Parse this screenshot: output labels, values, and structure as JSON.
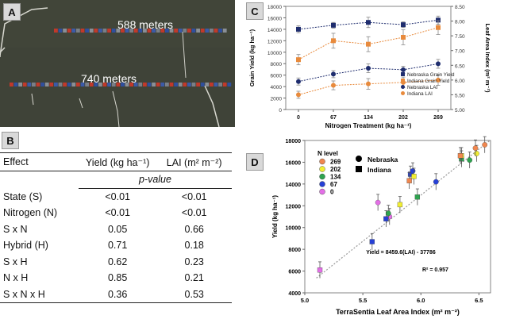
{
  "panels": {
    "a": {
      "label": "A",
      "strips": [
        {
          "distance": "588 meters"
        },
        {
          "distance": "740 meters"
        }
      ]
    },
    "b": {
      "label": "B"
    },
    "c": {
      "label": "C"
    },
    "d": {
      "label": "D"
    }
  },
  "effects_table": {
    "headers": [
      "Effect",
      "Yield (kg ha⁻¹)",
      "LAI (m² m⁻²)"
    ],
    "pvalue_label": "p-value",
    "rows": [
      [
        "State (S)",
        "<0.01",
        "<0.01"
      ],
      [
        "Nitrogen (N)",
        "<0.01",
        "<0.01"
      ],
      [
        "S x N",
        "0.05",
        "0.66"
      ],
      [
        "Hybrid (H)",
        "0.71",
        "0.18"
      ],
      [
        "S x H",
        "0.62",
        "0.23"
      ],
      [
        "N x H",
        "0.85",
        "0.21"
      ],
      [
        "S x N x H",
        "0.36",
        "0.53"
      ]
    ]
  },
  "chart_data": [
    {
      "panel": "C",
      "type": "scatter",
      "x": [
        0,
        67,
        134,
        202,
        269
      ],
      "xticklabels": [
        "0",
        "67",
        "134",
        "202",
        "269"
      ],
      "xlabel": "Nitrogen Treatment (kg ha⁻¹)",
      "ylabel": "Grain Yield (kg ha⁻¹)",
      "y2label": "Leaf Area Index (m² m⁻²)",
      "ylim": [
        0,
        18000
      ],
      "yticks": [
        0,
        2000,
        4000,
        6000,
        8000,
        10000,
        12000,
        14000,
        16000,
        18000
      ],
      "y2lim": [
        5.0,
        8.5
      ],
      "y2ticks": [
        "5.00",
        "5.50",
        "6.00",
        "6.50",
        "7.00",
        "7.50",
        "8.00",
        "8.50"
      ],
      "series": [
        {
          "name": "Nebraska Grain Yield",
          "axis": "left",
          "marker": "square",
          "color": "#1f2d6e",
          "values": [
            14000,
            14700,
            15200,
            14800,
            15600
          ],
          "errors": [
            600,
            500,
            900,
            500,
            700
          ]
        },
        {
          "name": "Indiana Grain Yield",
          "axis": "left",
          "marker": "square",
          "color": "#e88a3c",
          "values": [
            8700,
            12000,
            11400,
            12600,
            14300
          ],
          "errors": [
            900,
            1300,
            1300,
            1300,
            1200
          ]
        },
        {
          "name": "Nebraska LAI",
          "axis": "right",
          "marker": "circle",
          "color": "#1f2d6e",
          "values": [
            5.95,
            6.2,
            6.4,
            6.35,
            6.55
          ],
          "errors": [
            0.12,
            0.12,
            0.15,
            0.12,
            0.15
          ]
        },
        {
          "name": "Indiana LAI",
          "axis": "right",
          "marker": "circle",
          "color": "#e88a3c",
          "values": [
            5.5,
            5.82,
            5.87,
            5.92,
            6.0
          ],
          "errors": [
            0.12,
            0.15,
            0.18,
            0.18,
            0.18
          ]
        }
      ],
      "legend": "bottom-right"
    },
    {
      "panel": "D",
      "type": "scatter",
      "xlabel": "TerraSentia Leaf Area Index (m² m⁻²)",
      "ylabel": "Yield (kg ha⁻¹)",
      "xlim": [
        5.0,
        6.6
      ],
      "xticks": [
        "5.0",
        "5.5",
        "6.0",
        "6.5"
      ],
      "ylim": [
        4000,
        18000
      ],
      "yticks": [
        4000,
        6000,
        8000,
        10000,
        12000,
        14000,
        16000,
        18000
      ],
      "legend_title": "N level",
      "n_levels": [
        {
          "level": "269",
          "color": "#f0874f"
        },
        {
          "level": "202",
          "color": "#f2ef33"
        },
        {
          "level": "134",
          "color": "#2ea34f"
        },
        {
          "level": "67",
          "color": "#2640d6"
        },
        {
          "level": "0",
          "color": "#e36fe6"
        }
      ],
      "state_markers": [
        {
          "name": "Nebraska",
          "marker": "circle"
        },
        {
          "name": "Indiana",
          "marker": "square"
        }
      ],
      "points": [
        {
          "x": 5.13,
          "y": 6100,
          "n": "0",
          "state": "Indiana"
        },
        {
          "x": 5.63,
          "y": 12300,
          "n": "0",
          "state": "Nebraska"
        },
        {
          "x": 5.73,
          "y": 11000,
          "n": "0",
          "state": "Nebraska"
        },
        {
          "x": 5.58,
          "y": 8700,
          "n": "67",
          "state": "Indiana"
        },
        {
          "x": 5.7,
          "y": 10800,
          "n": "67",
          "state": "Indiana"
        },
        {
          "x": 5.91,
          "y": 14900,
          "n": "67",
          "state": "Indiana"
        },
        {
          "x": 6.13,
          "y": 14200,
          "n": "67",
          "state": "Nebraska"
        },
        {
          "x": 5.93,
          "y": 15200,
          "n": "67",
          "state": "Nebraska"
        },
        {
          "x": 5.72,
          "y": 11300,
          "n": "134",
          "state": "Nebraska"
        },
        {
          "x": 5.97,
          "y": 12800,
          "n": "134",
          "state": "Indiana"
        },
        {
          "x": 6.42,
          "y": 16200,
          "n": "134",
          "state": "Nebraska"
        },
        {
          "x": 6.35,
          "y": 16300,
          "n": "134",
          "state": "Indiana"
        },
        {
          "x": 5.82,
          "y": 12100,
          "n": "202",
          "state": "Indiana"
        },
        {
          "x": 5.94,
          "y": 14700,
          "n": "202",
          "state": "Indiana"
        },
        {
          "x": 6.35,
          "y": 16600,
          "n": "202",
          "state": "Indiana"
        },
        {
          "x": 6.48,
          "y": 16800,
          "n": "202",
          "state": "Nebraska"
        },
        {
          "x": 5.9,
          "y": 14300,
          "n": "269",
          "state": "Indiana"
        },
        {
          "x": 6.34,
          "y": 16600,
          "n": "269",
          "state": "Indiana"
        },
        {
          "x": 6.47,
          "y": 17300,
          "n": "269",
          "state": "Nebraska"
        },
        {
          "x": 6.55,
          "y": 17600,
          "n": "269",
          "state": "Nebraska"
        }
      ],
      "fit": {
        "slope": 8459.6,
        "intercept": -37786,
        "x_range": [
          5.1,
          6.6
        ]
      },
      "equation": "Yield = 8459.6(LAI)  - 37786",
      "r2": "R² = 0.957"
    }
  ]
}
